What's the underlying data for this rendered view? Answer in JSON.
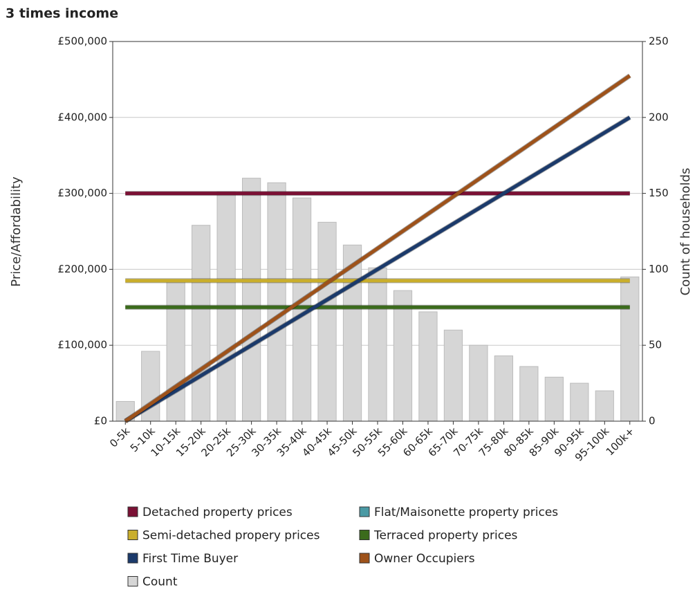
{
  "chart_data": {
    "type": "combo",
    "title": "3 times income",
    "y_label": "Price/Affordability",
    "y2_label": "Count of households",
    "categories": [
      "0-5k",
      "5-10k",
      "10-15k",
      "15-20k",
      "20-25k",
      "25-30k",
      "30-35k",
      "35-40k",
      "40-45k",
      "45-50k",
      "50-55k",
      "55-60k",
      "60-65k",
      "65-70k",
      "70-75k",
      "75-80k",
      "80-85k",
      "85-90k",
      "90-95k",
      "95-100k",
      "100k+"
    ],
    "ylim": [
      0,
      500000
    ],
    "yticks": [
      {
        "value": 0,
        "label": "£0"
      },
      {
        "value": 100000,
        "label": "£100,000"
      },
      {
        "value": 200000,
        "label": "£200,000"
      },
      {
        "value": 300000,
        "label": "£300,000"
      },
      {
        "value": 400000,
        "label": "£400,000"
      },
      {
        "value": 500000,
        "label": "£500,000"
      }
    ],
    "y2lim": [
      0,
      250
    ],
    "y2ticks": [
      0,
      50,
      100,
      150,
      200,
      250
    ],
    "grid": true,
    "series": [
      {
        "name": "Detached property prices",
        "type": "line",
        "color": "#7a1034",
        "values": [
          300000,
          300000,
          300000,
          300000,
          300000,
          300000,
          300000,
          300000,
          300000,
          300000,
          300000,
          300000,
          300000,
          300000,
          300000,
          300000,
          300000,
          300000,
          300000,
          300000,
          300000
        ]
      },
      {
        "name": "Flat/Maisonette property prices",
        "type": "line",
        "color": "#4a9aa4",
        "values": [
          null,
          null,
          null,
          null,
          null,
          null,
          null,
          null,
          null,
          null,
          null,
          null,
          null,
          null,
          null,
          null,
          null,
          null,
          null,
          null,
          null
        ]
      },
      {
        "name": "Semi-detached propery prices",
        "type": "line",
        "color": "#c9ae2c",
        "values": [
          185000,
          185000,
          185000,
          185000,
          185000,
          185000,
          185000,
          185000,
          185000,
          185000,
          185000,
          185000,
          185000,
          185000,
          185000,
          185000,
          185000,
          185000,
          185000,
          185000,
          185000
        ]
      },
      {
        "name": "Terraced property prices",
        "type": "line",
        "color": "#3b6b1c",
        "values": [
          150000,
          150000,
          150000,
          150000,
          150000,
          150000,
          150000,
          150000,
          150000,
          150000,
          150000,
          150000,
          150000,
          150000,
          150000,
          150000,
          150000,
          150000,
          150000,
          150000,
          150000
        ]
      },
      {
        "name": "First Time Buyer",
        "type": "line",
        "color": "#1b3a6b",
        "values": [
          0,
          20000,
          40000,
          60000,
          80000,
          100000,
          120000,
          140000,
          160000,
          180000,
          200000,
          220000,
          240000,
          260000,
          280000,
          300000,
          320000,
          340000,
          360000,
          380000,
          400000
        ]
      },
      {
        "name": "Owner Occupiers",
        "type": "line",
        "color": "#9e521a",
        "values": [
          0,
          22750,
          45500,
          68250,
          91000,
          113750,
          136500,
          159250,
          182000,
          204750,
          227500,
          250250,
          273000,
          295750,
          318500,
          341250,
          364000,
          386750,
          409500,
          432250,
          455000
        ]
      },
      {
        "name": "Count",
        "type": "bar",
        "axis": "y2",
        "color": "#d6d6d6",
        "values": [
          13,
          46,
          93,
          129,
          151,
          160,
          157,
          147,
          131,
          116,
          101,
          86,
          72,
          60,
          50,
          43,
          36,
          29,
          25,
          20,
          95
        ]
      }
    ]
  }
}
